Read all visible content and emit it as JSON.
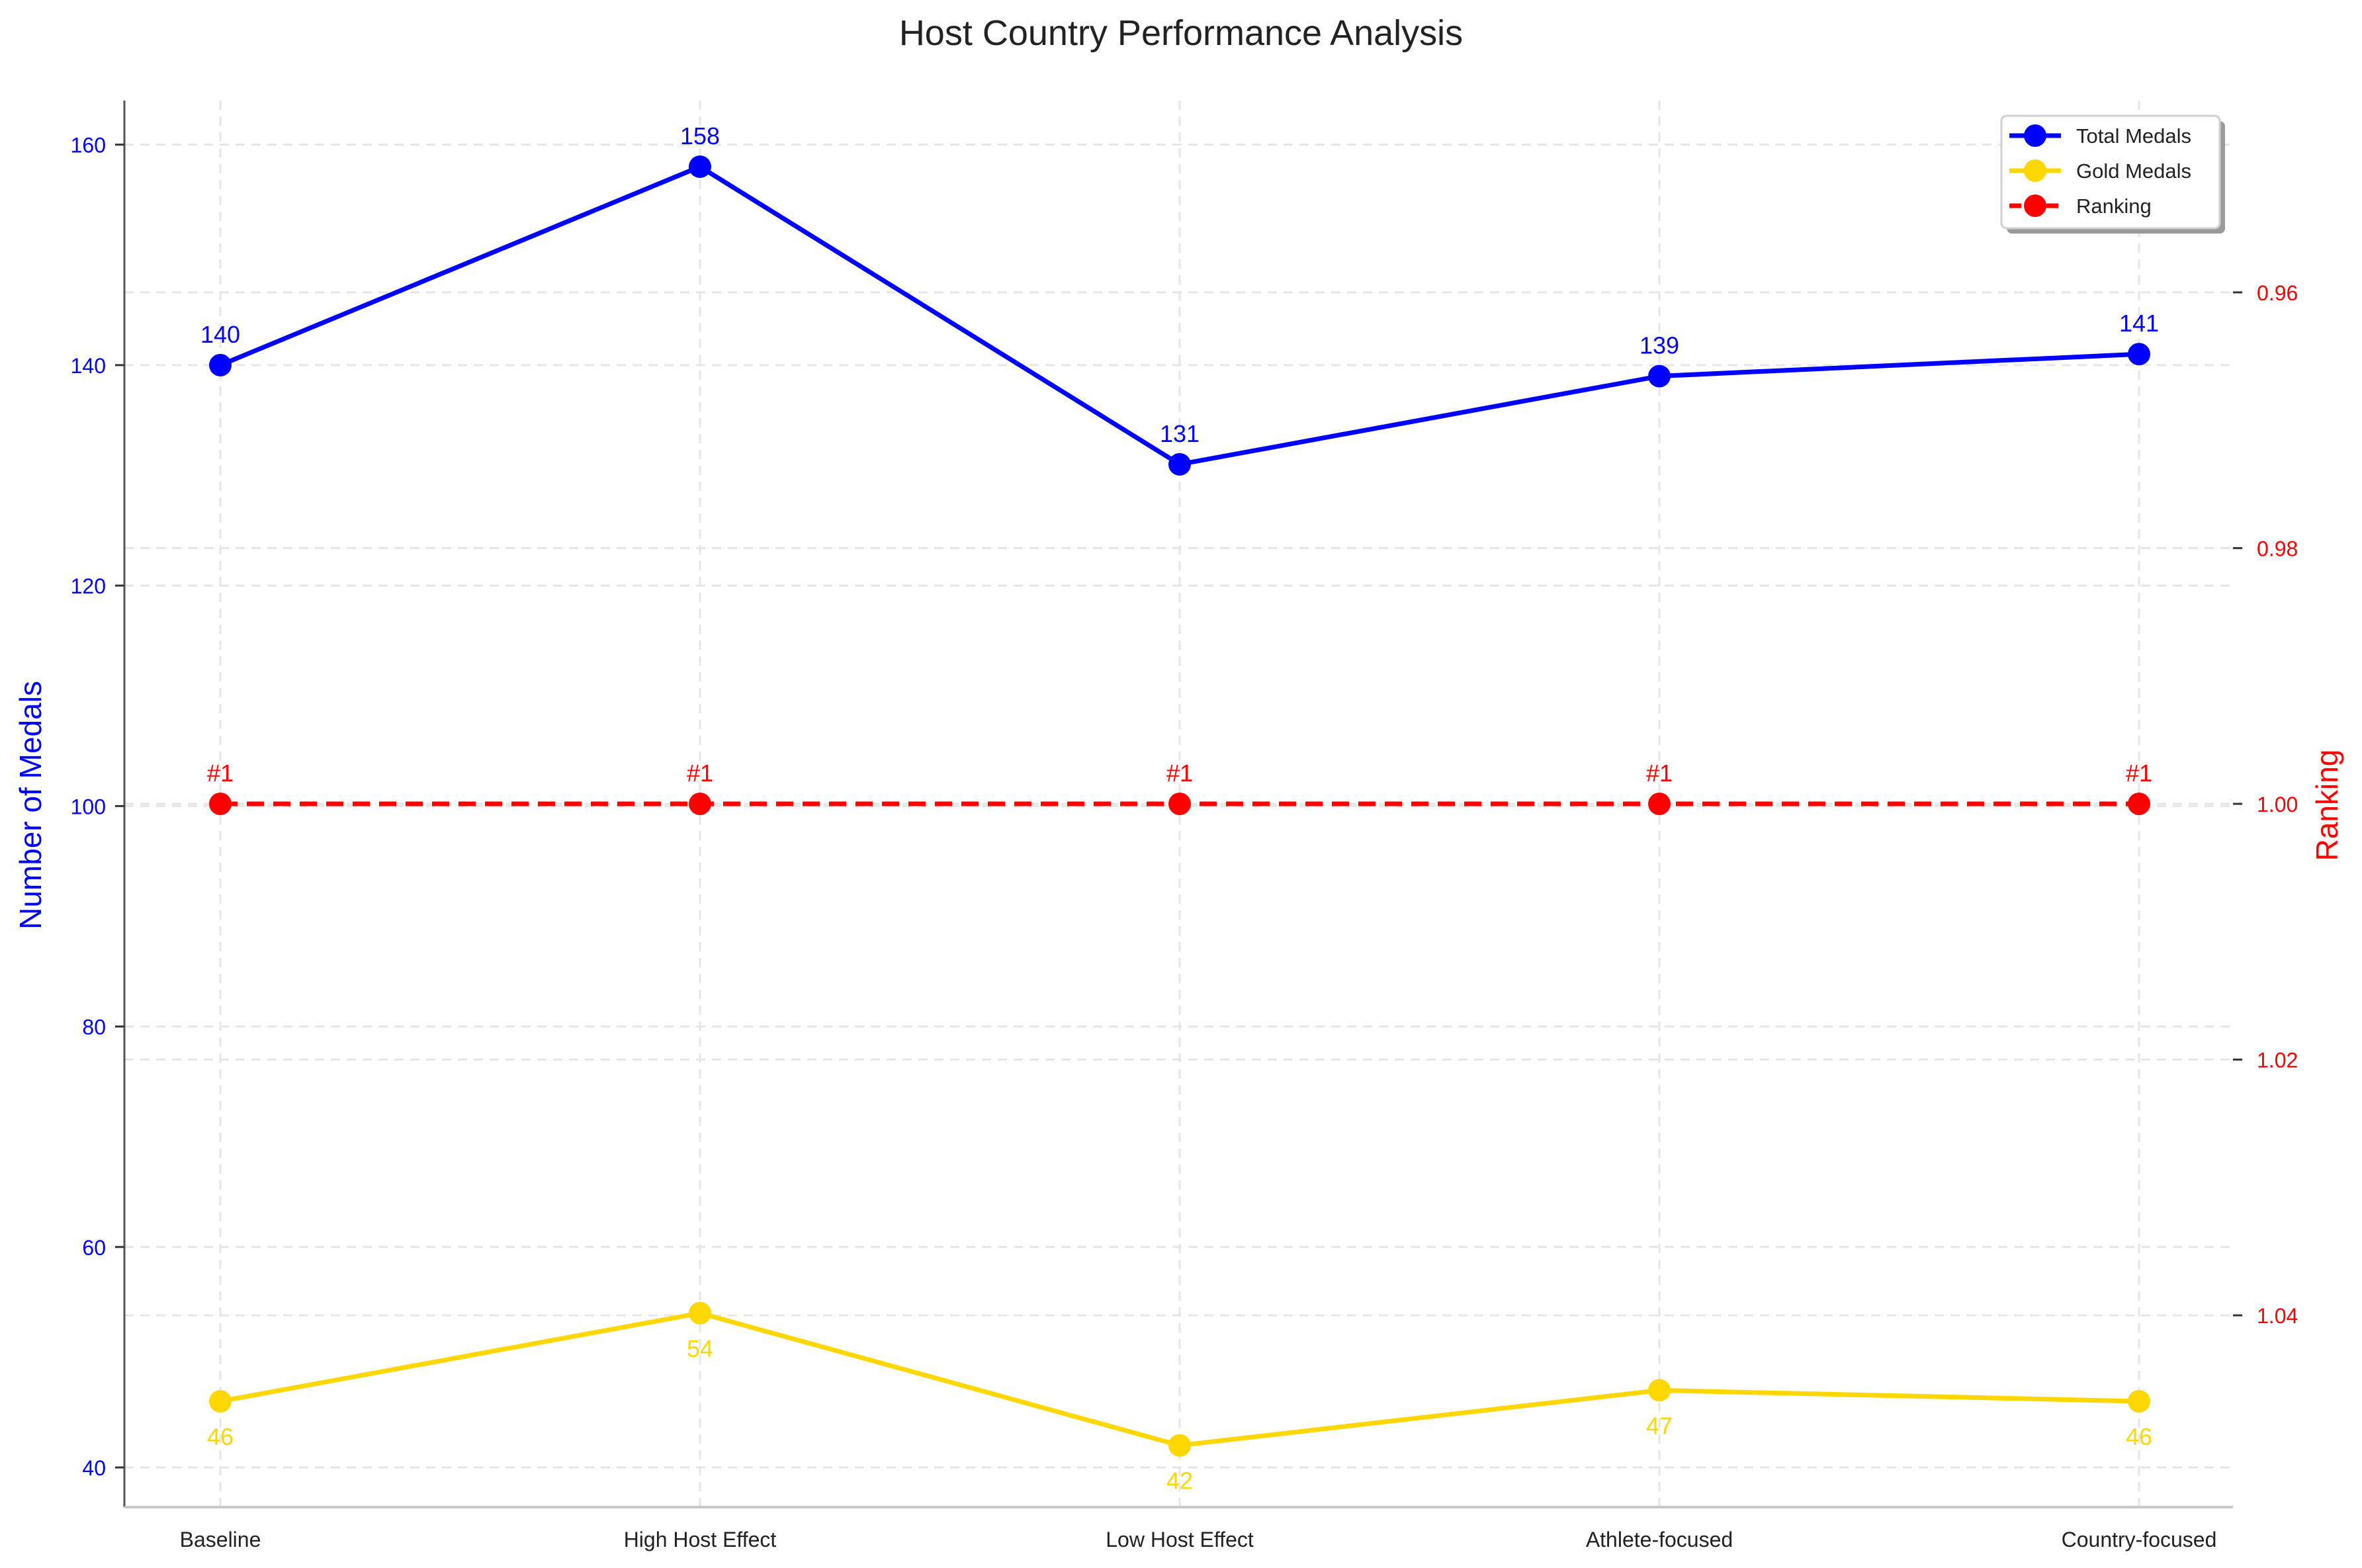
{
  "chart_data": {
    "type": "line",
    "title": "Host Country Performance Analysis",
    "categories": [
      "Baseline",
      "High Host Effect",
      "Low Host Effect",
      "Athlete-focused",
      "Country-focused"
    ],
    "ylabel": "Number of Medals",
    "y2label": "Ranking",
    "ylim": [
      36.4,
      164.0
    ],
    "y2lim": [
      1.055,
      0.945
    ],
    "y2_inverted": true,
    "yticks": [
      40,
      60,
      80,
      100,
      120,
      140,
      160
    ],
    "y2ticks": [
      0.96,
      0.98,
      1.0,
      1.02,
      1.04
    ],
    "ytick_labels": [
      "40",
      "60",
      "80",
      "100",
      "120",
      "140",
      "160"
    ],
    "y2tick_labels": [
      "0.96",
      "0.98",
      "1.00",
      "1.02",
      "1.04"
    ],
    "grid": true,
    "legend_position": "top-right",
    "series": [
      {
        "name": "Total Medals",
        "axis": "left",
        "color": "#0000ff",
        "style": "solid",
        "values": [
          140,
          158,
          131,
          139,
          141
        ],
        "labels": [
          "140",
          "158",
          "131",
          "139",
          "141"
        ],
        "label_position": "above"
      },
      {
        "name": "Gold Medals",
        "axis": "left",
        "color": "#ffd700",
        "style": "solid",
        "values": [
          46,
          54,
          42,
          47,
          46
        ],
        "labels": [
          "46",
          "54",
          "42",
          "47",
          "46"
        ],
        "label_position": "below"
      },
      {
        "name": "Ranking",
        "axis": "right",
        "color": "#ff0000",
        "style": "dashed",
        "values": [
          1,
          1,
          1,
          1,
          1
        ],
        "labels": [
          "#1",
          "#1",
          "#1",
          "#1",
          "#1"
        ],
        "label_position": "above"
      }
    ]
  }
}
